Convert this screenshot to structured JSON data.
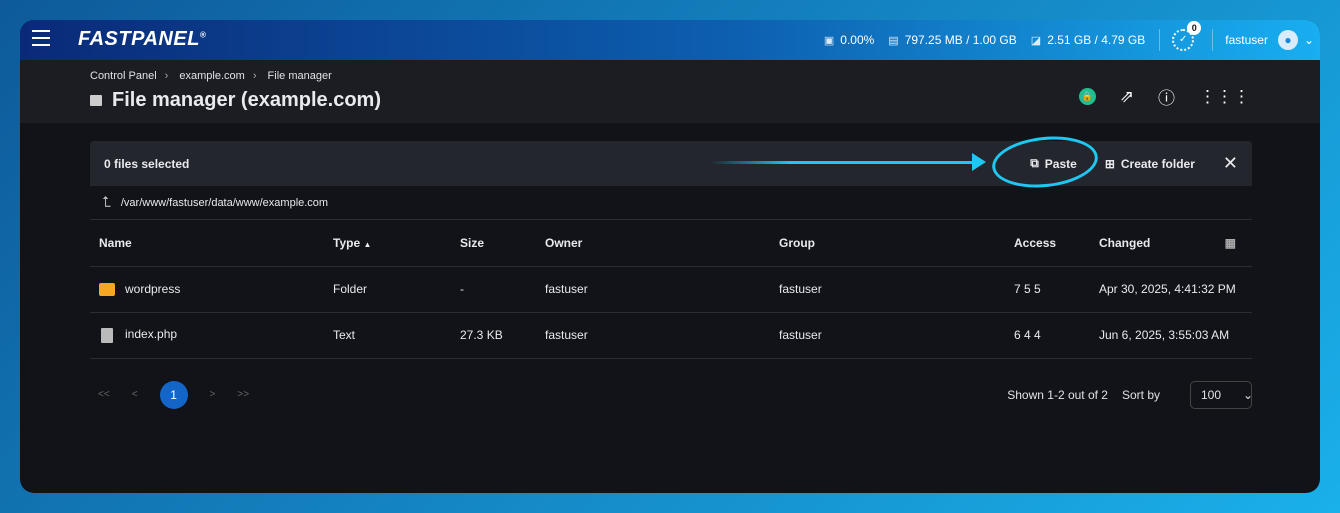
{
  "app": {
    "logo": "FASTPANEL"
  },
  "topbar": {
    "cpu": "0.00%",
    "memory": "797.25 MB / 1.00 GB",
    "disk": "2.51 GB / 4.79 GB",
    "tasks_count": "0",
    "user": "fastuser"
  },
  "breadcrumb": [
    "Control Panel",
    "example.com",
    "File manager"
  ],
  "page_title": "File manager (example.com)",
  "toolbar": {
    "selected": "0 files selected",
    "paste": "Paste",
    "create_folder": "Create folder"
  },
  "path": "/var/www/fastuser/data/www/example.com",
  "table": {
    "columns": [
      "Name",
      "Type",
      "Size",
      "Owner",
      "Group",
      "Access",
      "Changed"
    ],
    "rows": [
      {
        "name": "wordpress",
        "type": "Folder",
        "size": "-",
        "owner": "fastuser",
        "group": "fastuser",
        "access": "7 5 5",
        "changed": "Apr 30, 2025, 4:41:32 PM",
        "icon": "folder"
      },
      {
        "name": "index.php",
        "type": "Text",
        "size": "27.3 KB",
        "owner": "fastuser",
        "group": "fastuser",
        "access": "6 4 4",
        "changed": "Jun 6, 2025, 3:55:03 AM",
        "icon": "file"
      }
    ]
  },
  "pagination": {
    "first": "<<",
    "prev": "<",
    "current": "1",
    "next": ">",
    "last": ">>",
    "shown": "Shown 1-2 out of 2",
    "sort_label": "Sort by",
    "sort_value": "100"
  },
  "colors": {
    "accent": "#1366c8",
    "annotation": "#1ec8f2",
    "folder": "#f5a623"
  }
}
